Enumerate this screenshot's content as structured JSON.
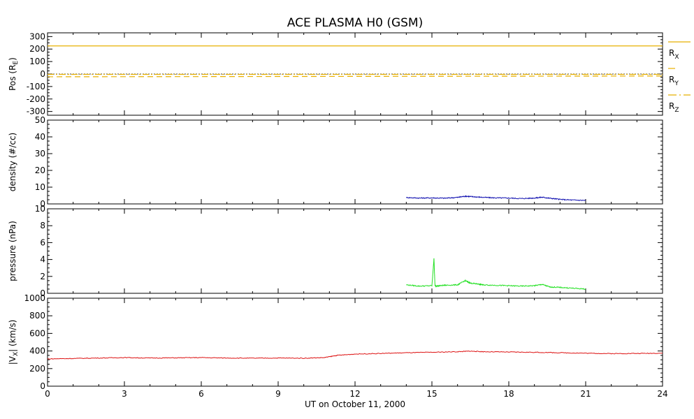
{
  "title": "ACE PLASMA H0 (GSM)",
  "xlabel": "UT on October 11, 2000",
  "colors": {
    "density": "#1010b0",
    "pressure": "#22e022",
    "vx": "#dd1111",
    "position": "#e8b000"
  },
  "chart_data": [
    {
      "type": "line",
      "ylabel": "Pos (RE)",
      "ylabel_main": "Pos (R",
      "ylabel_sub": "E",
      "ylabel_end": ")",
      "ylim": [
        -330,
        330
      ],
      "yticks": [
        300,
        200,
        100,
        0,
        -100,
        -200,
        -300
      ],
      "xlim": [
        0,
        24
      ],
      "series": [
        {
          "name": "RX",
          "label_main": "R",
          "label_sub": "X",
          "style": "solid",
          "x": [
            0,
            24
          ],
          "y": [
            225,
            225
          ]
        },
        {
          "name": "RY",
          "label_main": "R",
          "label_sub": "Y",
          "style": "dashed",
          "x": [
            0,
            24
          ],
          "y": [
            -22,
            -16
          ]
        },
        {
          "name": "RZ",
          "label_main": "R",
          "label_sub": "Z",
          "style": "dashdot",
          "x": [
            0,
            24
          ],
          "y": [
            -3,
            -3
          ]
        }
      ],
      "zero_line": true
    },
    {
      "type": "line",
      "ylabel": "density (#/cc)",
      "ylim": [
        0,
        50
      ],
      "yticks": [
        50,
        40,
        30,
        20,
        10,
        0
      ],
      "xlim": [
        0,
        24
      ],
      "series": [
        {
          "x": [
            14,
            14.5,
            15,
            15.5,
            16,
            16.3,
            16.6,
            17,
            17.5,
            18,
            18.5,
            19,
            19.3,
            19.6,
            20,
            20.5,
            21
          ],
          "y": [
            3.8,
            3.5,
            3.6,
            3.4,
            3.9,
            4.6,
            4.3,
            3.9,
            3.6,
            3.5,
            3.2,
            3.5,
            4.0,
            3.4,
            2.7,
            2.3,
            2.1
          ]
        }
      ]
    },
    {
      "type": "line",
      "ylabel": "pressure (nPa)",
      "ylim": [
        0,
        10
      ],
      "yticks": [
        10,
        8,
        6,
        4,
        2,
        0
      ],
      "xlim": [
        0,
        24
      ],
      "series": [
        {
          "x": [
            14,
            14.5,
            15,
            15.08,
            15.12,
            15.16,
            15.5,
            16,
            16.3,
            16.5,
            16.8,
            17,
            17.5,
            18,
            18.5,
            19,
            19.3,
            19.6,
            20,
            20.5,
            21
          ],
          "y": [
            1.0,
            0.85,
            0.9,
            4.1,
            0.9,
            0.85,
            0.95,
            1.0,
            1.5,
            1.2,
            1.1,
            1.0,
            0.95,
            0.9,
            0.85,
            0.9,
            1.05,
            0.75,
            0.7,
            0.6,
            0.5
          ]
        }
      ]
    },
    {
      "type": "line",
      "ylabel": "|VX| (km/s)",
      "ylabel_main": "|V",
      "ylabel_sub": "X",
      "ylabel_end": "| (km/s)",
      "ylim": [
        0,
        1000
      ],
      "yticks": [
        1000,
        800,
        600,
        400,
        200,
        0
      ],
      "xlim": [
        0,
        24
      ],
      "xticks": [
        0,
        3,
        6,
        9,
        12,
        15,
        18,
        21,
        24
      ],
      "series": [
        {
          "x": [
            0,
            1,
            2,
            3,
            4,
            5,
            6,
            7,
            8,
            9,
            10,
            10.8,
            11.3,
            12,
            13,
            14,
            15,
            16,
            16.5,
            17,
            18,
            19,
            20,
            21,
            22,
            23,
            24
          ],
          "y": [
            310,
            315,
            320,
            325,
            320,
            322,
            325,
            320,
            318,
            320,
            318,
            325,
            350,
            365,
            372,
            380,
            385,
            392,
            398,
            392,
            388,
            385,
            380,
            375,
            370,
            372,
            375
          ]
        }
      ]
    }
  ]
}
